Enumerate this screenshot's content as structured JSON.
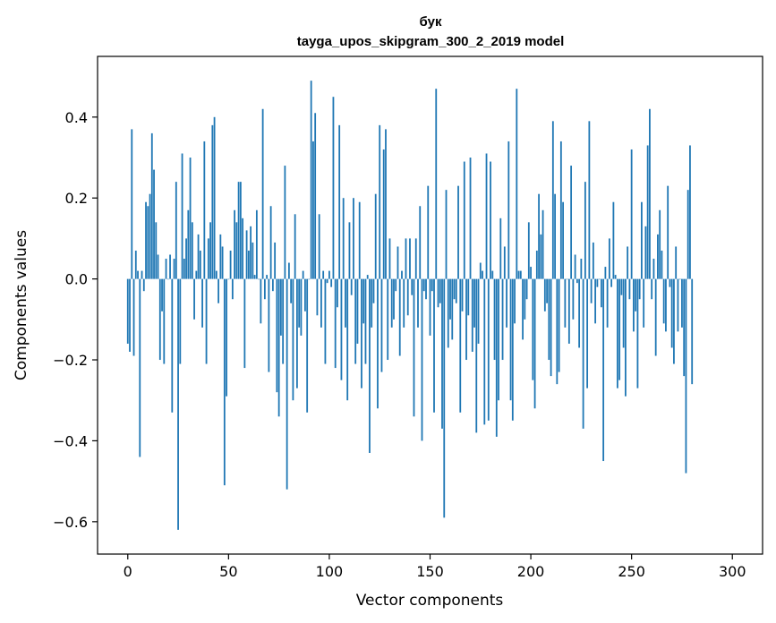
{
  "chart_data": {
    "type": "bar",
    "title": "бук",
    "subtitle": "tayga_upos_skipgram_300_2_2019 model",
    "xlabel": "Vector components",
    "ylabel": "Components values",
    "xlim": [
      -15,
      315
    ],
    "ylim": [
      -0.68,
      0.55
    ],
    "xticks": [
      0,
      50,
      100,
      150,
      200,
      250,
      300
    ],
    "yticks": [
      -0.6,
      -0.4,
      -0.2,
      0.0,
      0.2,
      0.4
    ],
    "ytick_labels": [
      "−0.6",
      "−0.4",
      "−0.2",
      "0.0",
      "0.2",
      "0.4"
    ],
    "grid": false,
    "bar_color": "#1f77b4",
    "values": [
      -0.16,
      -0.18,
      0.37,
      -0.19,
      0.07,
      0.02,
      -0.44,
      0.02,
      -0.03,
      0.19,
      0.18,
      0.21,
      0.36,
      0.27,
      0.14,
      0.06,
      -0.2,
      -0.08,
      -0.21,
      0.05,
      0.0,
      0.06,
      -0.33,
      0.05,
      0.24,
      -0.62,
      -0.21,
      0.31,
      0.05,
      0.1,
      0.17,
      0.3,
      0.14,
      -0.1,
      0.02,
      0.11,
      0.07,
      -0.12,
      0.34,
      -0.21,
      0.1,
      0.14,
      0.38,
      0.4,
      0.02,
      -0.06,
      0.11,
      0.08,
      -0.51,
      -0.29,
      0.0,
      0.07,
      -0.05,
      0.17,
      0.14,
      0.24,
      0.24,
      0.15,
      -0.22,
      0.12,
      0.07,
      0.13,
      0.09,
      0.01,
      0.17,
      0.0,
      -0.11,
      0.42,
      -0.05,
      0.01,
      -0.23,
      0.18,
      -0.03,
      0.09,
      -0.28,
      -0.34,
      -0.14,
      -0.21,
      0.28,
      -0.52,
      0.04,
      -0.06,
      -0.3,
      0.16,
      -0.27,
      -0.12,
      -0.14,
      0.02,
      -0.08,
      -0.33,
      0.0,
      0.49,
      0.34,
      0.41,
      -0.09,
      0.16,
      -0.12,
      0.02,
      -0.21,
      -0.01,
      0.02,
      -0.02,
      0.45,
      -0.22,
      -0.07,
      0.38,
      -0.25,
      0.2,
      -0.12,
      -0.3,
      0.14,
      -0.04,
      0.2,
      -0.21,
      -0.16,
      0.19,
      -0.27,
      -0.11,
      -0.21,
      0.01,
      -0.43,
      -0.12,
      -0.06,
      0.21,
      -0.32,
      0.38,
      -0.23,
      0.32,
      0.37,
      -0.2,
      0.1,
      -0.12,
      -0.1,
      -0.03,
      0.08,
      -0.19,
      0.02,
      -0.12,
      0.1,
      -0.09,
      0.1,
      -0.04,
      -0.34,
      0.1,
      -0.12,
      0.18,
      -0.4,
      -0.03,
      -0.05,
      0.23,
      -0.14,
      -0.03,
      -0.33,
      0.47,
      -0.07,
      -0.06,
      -0.37,
      -0.59,
      0.22,
      -0.17,
      -0.1,
      -0.15,
      -0.05,
      -0.06,
      0.23,
      -0.33,
      -0.08,
      0.29,
      -0.2,
      -0.09,
      0.3,
      -0.18,
      -0.12,
      -0.38,
      -0.16,
      0.04,
      0.02,
      -0.36,
      0.31,
      -0.35,
      0.29,
      0.02,
      -0.2,
      -0.39,
      -0.3,
      0.15,
      -0.2,
      0.08,
      -0.12,
      0.34,
      -0.3,
      -0.35,
      -0.11,
      0.47,
      0.02,
      0.02,
      -0.15,
      -0.1,
      -0.05,
      0.14,
      0.03,
      -0.25,
      -0.32,
      0.07,
      0.21,
      0.11,
      0.17,
      -0.08,
      -0.06,
      -0.2,
      -0.24,
      0.39,
      0.21,
      -0.26,
      -0.23,
      0.34,
      0.19,
      -0.12,
      0.0,
      -0.16,
      0.28,
      -0.1,
      0.06,
      -0.01,
      -0.17,
      0.05,
      -0.37,
      0.24,
      -0.27,
      0.39,
      -0.06,
      0.09,
      -0.11,
      -0.02,
      0.0,
      -0.07,
      -0.45,
      0.03,
      -0.12,
      0.1,
      -0.02,
      0.19,
      0.01,
      -0.27,
      -0.25,
      -0.04,
      -0.17,
      -0.29,
      0.08,
      -0.05,
      0.32,
      -0.13,
      -0.08,
      -0.27,
      -0.05,
      0.19,
      -0.12,
      0.13,
      0.33,
      0.42,
      -0.05,
      0.05,
      -0.19,
      0.11,
      0.17,
      0.07,
      -0.11,
      -0.13,
      0.23,
      -0.02,
      -0.17,
      -0.21,
      0.08,
      -0.13,
      0.0,
      -0.12,
      -0.24,
      -0.48,
      0.22,
      0.33,
      -0.26
    ]
  }
}
